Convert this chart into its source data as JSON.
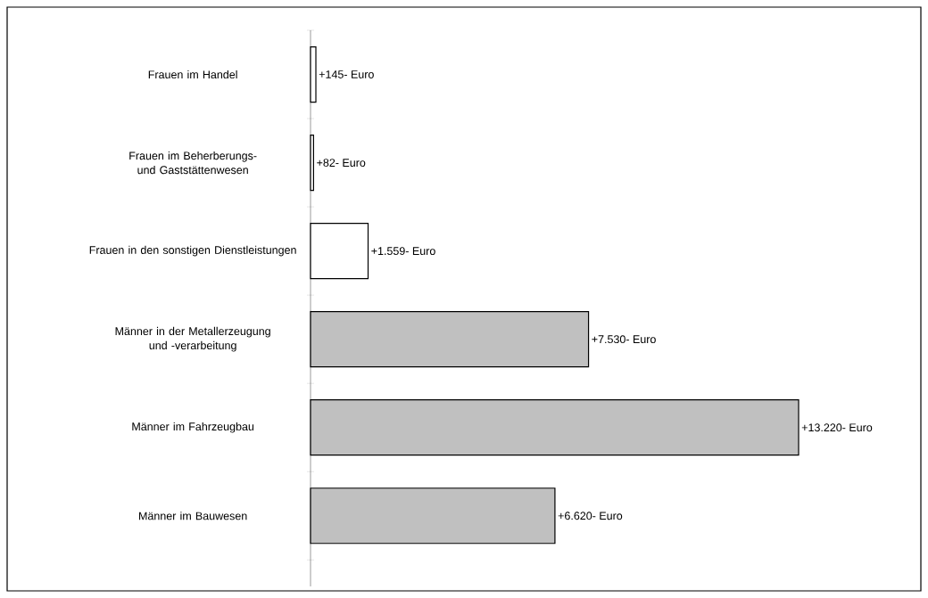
{
  "chart_data": {
    "type": "bar",
    "orientation": "horizontal",
    "categories": [
      "Frauen im Handel",
      "Frauen im Beherberungs- und Gaststättenwesen",
      "Frauen in den sonstigen Dienstleistungen",
      "Männer in der Metallerzeugung und -verarbeitung",
      "Männer im Fahrzeugbau",
      "Männer im Bauwesen"
    ],
    "values": [
      145,
      82,
      1559,
      7530,
      13220,
      6620
    ],
    "colors": [
      "#ffffff",
      "#ffffff",
      "#ffffff",
      "#c0c0c0",
      "#c0c0c0",
      "#c0c0c0"
    ],
    "value_labels": [
      "+145- Euro",
      "+82- Euro",
      "+1.559- Euro",
      "+7.530- Euro",
      "+13.220- Euro",
      "+6.620- Euro"
    ]
  }
}
